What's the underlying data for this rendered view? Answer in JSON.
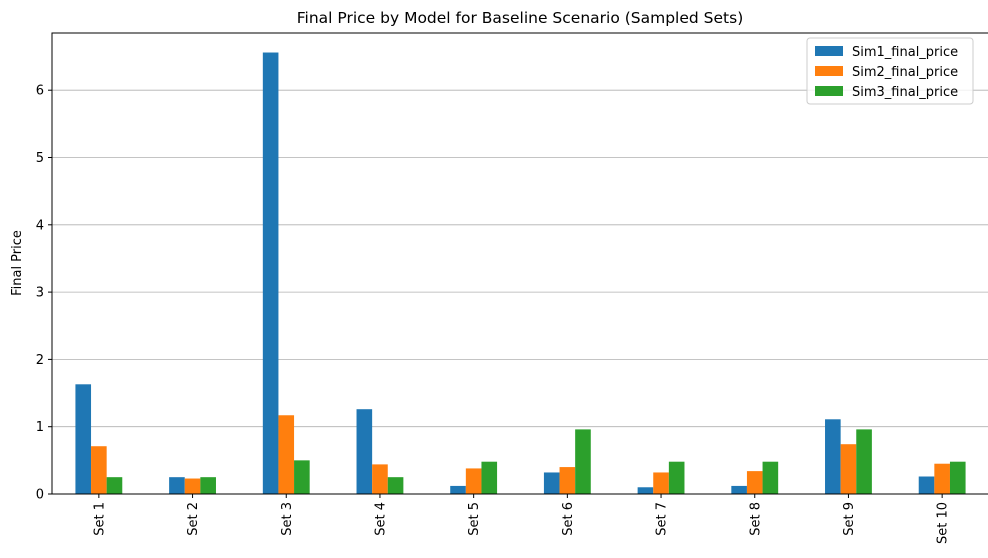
{
  "chart_data": {
    "type": "bar",
    "title": "Final Price by Model for Baseline Scenario (Sampled Sets)",
    "xlabel": "",
    "ylabel": "Final Price",
    "ylim": [
      0,
      6.85
    ],
    "yticks": [
      "0",
      "1",
      "2",
      "3",
      "4",
      "5",
      "6"
    ],
    "grid": "y-axis on",
    "legend_position": "top-right",
    "categories": [
      "Set 1",
      "Set 2",
      "Set 3",
      "Set 4",
      "Set 5",
      "Set 6",
      "Set 7",
      "Set 8",
      "Set 9",
      "Set 10"
    ],
    "series": [
      {
        "name": "Sim1_final_price",
        "color": "#1f77b4",
        "values": [
          1.63,
          0.25,
          6.56,
          1.26,
          0.12,
          0.32,
          0.1,
          0.12,
          1.11,
          0.26
        ]
      },
      {
        "name": "Sim2_final_price",
        "color": "#ff7f0e",
        "values": [
          0.71,
          0.23,
          1.17,
          0.44,
          0.38,
          0.4,
          0.32,
          0.34,
          0.74,
          0.45
        ]
      },
      {
        "name": "Sim3_final_price",
        "color": "#2ca02c",
        "values": [
          0.25,
          0.25,
          0.5,
          0.25,
          0.48,
          0.96,
          0.48,
          0.48,
          0.96,
          0.48
        ]
      }
    ]
  }
}
